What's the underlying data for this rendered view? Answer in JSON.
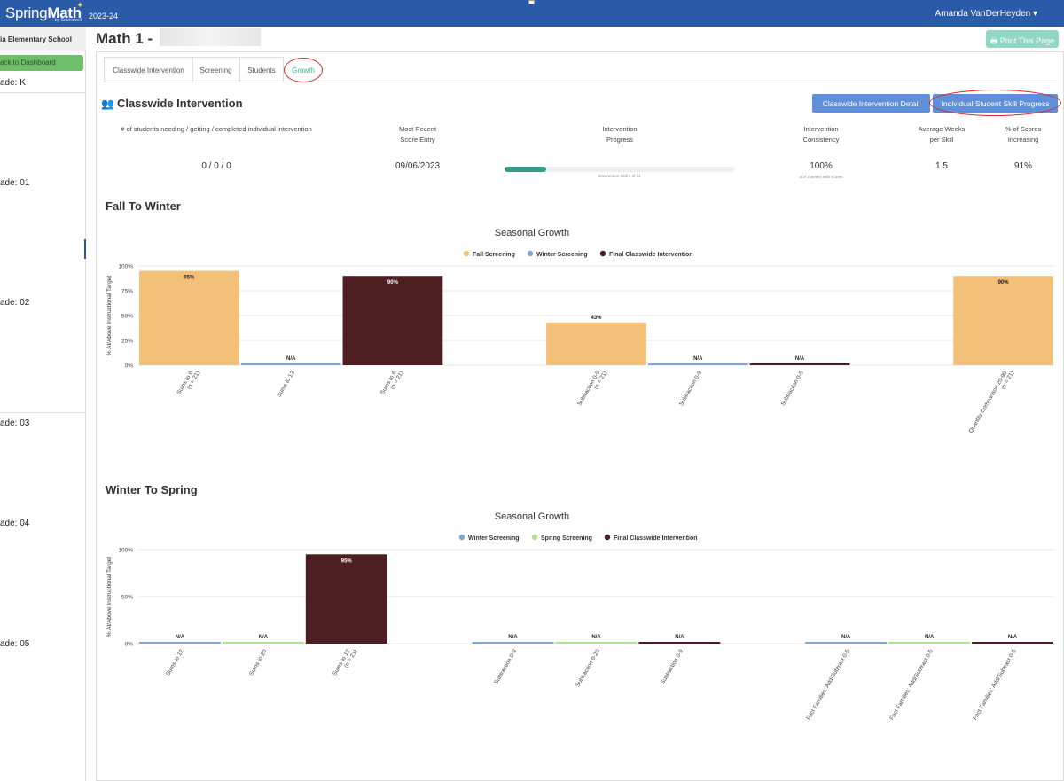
{
  "topbar": {
    "brand_spring": "Spring",
    "brand_math": "Math",
    "brand_sub": "by Sourcewell",
    "year": "2023-24",
    "user": "Amanda VanDerHeyden ▾"
  },
  "sidebar": {
    "school": "ia Elementary School",
    "back": "ack to Dashboard",
    "grades": [
      "ade: K",
      "ade: 01",
      "ade: 02",
      "ade: 03",
      "ade: 04",
      "ade: 05"
    ]
  },
  "header": {
    "title": "Math 1 -",
    "print": "🖶 Print This Page"
  },
  "tabs": [
    "Classwide Intervention",
    "Screening",
    "Students",
    "Growth"
  ],
  "classwide": {
    "title": "Classwide Intervention",
    "btn_detail": "Classwide Intervention Detail",
    "btn_individual": "Individual Student Skill Progress",
    "stats": {
      "students_h": "# of students needing / getting / completed individual intervention",
      "students_v": "0 / 0 / 0",
      "recent_h": "Most Recent Score Entry",
      "recent_v": "09/06/2023",
      "progress_h": "Intervention Progress",
      "progress_sub": "Intervention Skill 2 of 11",
      "progress_fraction": 0.18,
      "consistency_h": "Intervention Consistency",
      "consistency_v": "100%",
      "consistency_sub": "3 of 3 weeks with scores",
      "weeks_h": "Average Weeks per Skill",
      "weeks_v": "1.5",
      "scores_h": "% of Scores Increasing",
      "scores_v": "91%"
    }
  },
  "colors": {
    "fall": "#f2c078",
    "winter": "#7ea6dc",
    "spring": "#b5e08a",
    "final": "#4d1f22"
  },
  "chart_data": [
    {
      "type": "bar",
      "section": "Fall To Winter",
      "title": "Seasonal Growth",
      "ylabel": "% At/Above Instructional Target",
      "ylim": [
        0,
        100
      ],
      "yticks": [
        "0%",
        "25%",
        "50%",
        "75%",
        "100%"
      ],
      "ytick_values": [
        0,
        25,
        50,
        75,
        100
      ],
      "legend": [
        "Fall Screening",
        "Winter Screening",
        "Final Classwide Intervention"
      ],
      "legend_colors": [
        "fall",
        "winter",
        "final"
      ],
      "bars": [
        {
          "cat": "Sums to 6",
          "sub": "(n = 21)",
          "series": "fall",
          "value": 95,
          "label": "95%"
        },
        {
          "cat": "Sums to 12",
          "sub": "",
          "series": "winter",
          "value": 0,
          "label": "N/A"
        },
        {
          "cat": "Sums to 6",
          "sub": "(n = 21)",
          "series": "final",
          "value": 90,
          "label": "90%"
        },
        {
          "cat": "",
          "sub": "",
          "series": "",
          "value": null,
          "label": ""
        },
        {
          "cat": "Subtraction 0-5",
          "sub": "(n = 21)",
          "series": "fall",
          "value": 43,
          "label": "43%"
        },
        {
          "cat": "Subtraction 0-9",
          "sub": "",
          "series": "winter",
          "value": 0,
          "label": "N/A"
        },
        {
          "cat": "Subtraction 0-5",
          "sub": "",
          "series": "final",
          "value": 0,
          "label": "N/A"
        },
        {
          "cat": "",
          "sub": "",
          "series": "",
          "value": null,
          "label": ""
        },
        {
          "cat": "Quantity Comparison 20-99",
          "sub": "(n = 21)",
          "series": "fall",
          "value": 90,
          "label": "90%"
        }
      ]
    },
    {
      "type": "bar",
      "section": "Winter To Spring",
      "title": "Seasonal Growth",
      "ylabel": "% At/Above Instructional Target",
      "ylim": [
        0,
        100
      ],
      "yticks": [
        "0%",
        "50%",
        "100%"
      ],
      "ytick_values": [
        0,
        50,
        100
      ],
      "legend": [
        "Winter Screening",
        "Spring Screening",
        "Final Classwide Intervention"
      ],
      "legend_colors": [
        "winter",
        "spring",
        "final"
      ],
      "bars": [
        {
          "cat": "Sums to 12",
          "sub": "",
          "series": "winter",
          "value": 0,
          "label": "N/A"
        },
        {
          "cat": "Sums to 20",
          "sub": "",
          "series": "spring",
          "value": 0,
          "label": "N/A"
        },
        {
          "cat": "Sums to 12",
          "sub": "(n = 21)",
          "series": "final",
          "value": 95,
          "label": "95%"
        },
        {
          "cat": "",
          "sub": "",
          "series": "",
          "value": null,
          "label": ""
        },
        {
          "cat": "Subtraction 0-9",
          "sub": "",
          "series": "winter",
          "value": 0,
          "label": "N/A"
        },
        {
          "cat": "Subtraction 0-20",
          "sub": "",
          "series": "spring",
          "value": 0,
          "label": "N/A"
        },
        {
          "cat": "Subtraction 0-9",
          "sub": "",
          "series": "final",
          "value": 0,
          "label": "N/A"
        },
        {
          "cat": "",
          "sub": "",
          "series": "",
          "value": null,
          "label": ""
        },
        {
          "cat": "Fact Families: Add/Subtract 0-5",
          "sub": "",
          "series": "winter",
          "value": 0,
          "label": "N/A"
        },
        {
          "cat": "Fact Families: Add/Subtract 0-5",
          "sub": "",
          "series": "spring",
          "value": 0,
          "label": "N/A"
        },
        {
          "cat": "Fact Families: Add/Subtract 0-5",
          "sub": "",
          "series": "final",
          "value": 0,
          "label": "N/A"
        }
      ]
    }
  ]
}
